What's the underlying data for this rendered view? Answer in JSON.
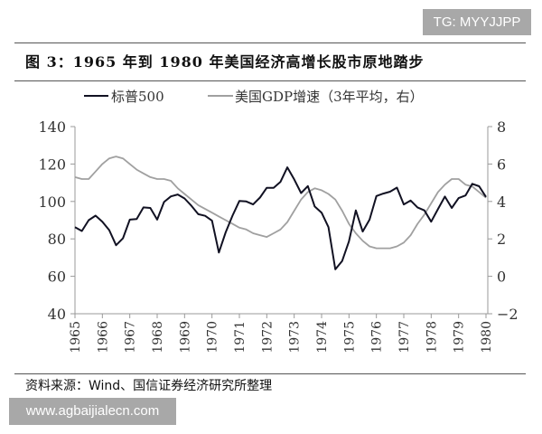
{
  "watermark_top": "TG: MYYJJPP",
  "watermark_bottom": "www.agbaijialecn.com",
  "title": "图 3：1965 年到 1980 年美国经济高增长股市原地踏步",
  "source": "资料来源：Wind、国信证券经济研究所整理",
  "chart_data": {
    "type": "line",
    "x_start": 1965,
    "x_step": 0.25,
    "xlim": [
      1965,
      1980
    ],
    "x_ticks": [
      "1965",
      "1966",
      "1967",
      "1968",
      "1969",
      "1970",
      "1971",
      "1972",
      "1973",
      "1974",
      "1975",
      "1976",
      "1977",
      "1978",
      "1979",
      "1980"
    ],
    "ylim_left": [
      40,
      140
    ],
    "y_ticks_left": [
      "40",
      "60",
      "80",
      "100",
      "120",
      "140"
    ],
    "ylim_right": [
      -2,
      8
    ],
    "y_ticks_right": [
      "-2",
      "0",
      "2",
      "4",
      "6",
      "8"
    ],
    "grid": false,
    "legend_position": "top",
    "series": [
      {
        "name": "标普500",
        "axis": "left",
        "color": "#111122",
        "values": [
          86.3,
          84.2,
          90,
          92.4,
          89.2,
          84.7,
          76.6,
          80.3,
          90.3,
          90.6,
          96.8,
          96.5,
          90.3,
          99.7,
          102.7,
          103.7,
          101.6,
          97.7,
          93.2,
          92.3,
          89.7,
          72.7,
          83.5,
          92.4,
          100.3,
          100,
          98.4,
          102.1,
          107.3,
          107.3,
          110.5,
          118.2,
          111.8,
          104.5,
          108.2,
          97.3,
          94,
          86.3,
          63.7,
          68.2,
          78.7,
          95.2,
          83.9,
          90.3,
          102.9,
          104.2,
          105.2,
          107.4,
          98.4,
          100.5,
          96.8,
          95.2,
          89.2,
          96,
          102.6,
          96.5,
          101.8,
          103.2,
          109.4,
          108.1,
          102.4
        ]
      },
      {
        "name": "美国GDP增速（3年平均，右）",
        "axis": "right",
        "color": "#a0a0a0",
        "values": [
          5.3,
          5.2,
          5.2,
          5.6,
          6.0,
          6.3,
          6.4,
          6.3,
          6.0,
          5.7,
          5.5,
          5.3,
          5.2,
          5.2,
          5.1,
          4.7,
          4.4,
          4.1,
          3.8,
          3.6,
          3.4,
          3.2,
          3.0,
          2.8,
          2.6,
          2.5,
          2.3,
          2.2,
          2.1,
          2.3,
          2.5,
          2.9,
          3.5,
          4.1,
          4.5,
          4.7,
          4.6,
          4.4,
          4.1,
          3.5,
          2.8,
          2.3,
          1.9,
          1.6,
          1.5,
          1.5,
          1.5,
          1.6,
          1.8,
          2.2,
          2.8,
          3.3,
          3.9,
          4.5,
          4.9,
          5.2,
          5.2,
          4.9,
          4.8,
          4.5,
          4.2
        ]
      }
    ]
  }
}
